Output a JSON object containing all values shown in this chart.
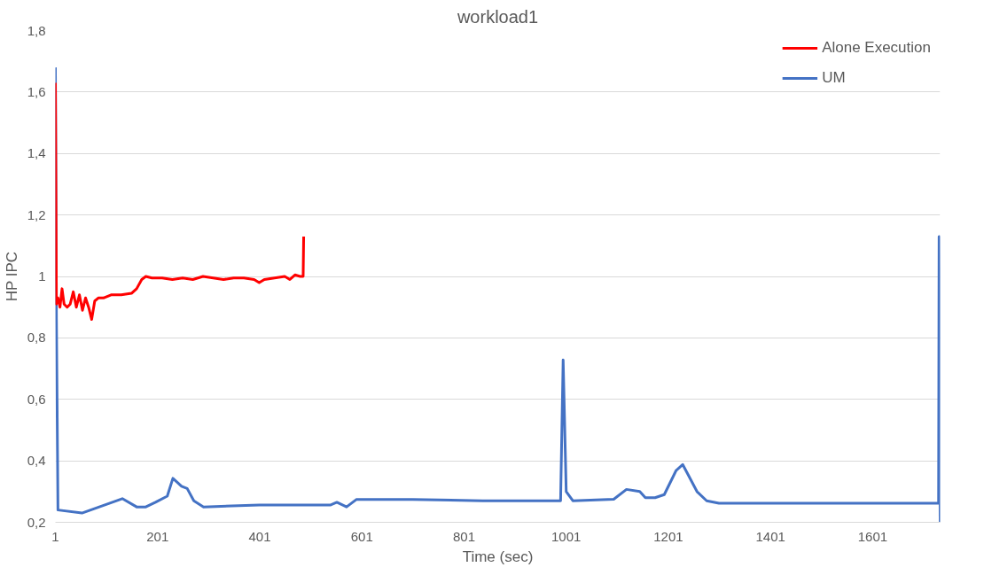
{
  "chart_data": {
    "type": "line",
    "title": "workload1",
    "xlabel": "Time (sec)",
    "ylabel": "HP IPC",
    "xlim": [
      1,
      1733
    ],
    "xticks": [
      1,
      201,
      401,
      601,
      801,
      1001,
      1201,
      1401,
      1601
    ],
    "ylim": [
      0.2,
      1.8
    ],
    "yticks": [
      {
        "value": 0.2,
        "label": "0,2"
      },
      {
        "value": 0.4,
        "label": "0,4"
      },
      {
        "value": 0.6,
        "label": "0,6"
      },
      {
        "value": 0.8,
        "label": "0,8"
      },
      {
        "value": 1,
        "label": "1"
      },
      {
        "value": 1.2,
        "label": "1,2"
      },
      {
        "value": 1.4,
        "label": "1,4"
      },
      {
        "value": 1.6,
        "label": "1,6"
      },
      {
        "value": 1.8,
        "label": "1,8"
      }
    ],
    "grid": "y",
    "legend": "top right",
    "line_style": "solid",
    "marker": "none",
    "series": [
      {
        "name": "Alone Execution",
        "color": "#ff0000",
        "x": [
          1,
          3,
          6,
          10,
          14,
          18,
          24,
          30,
          36,
          42,
          48,
          54,
          60,
          66,
          72,
          78,
          85,
          95,
          110,
          130,
          150,
          160,
          170,
          178,
          190,
          210,
          230,
          250,
          270,
          290,
          310,
          330,
          350,
          370,
          390,
          400,
          410,
          430,
          450,
          460,
          470,
          480,
          486,
          487
        ],
        "values": [
          1.63,
          0.91,
          0.93,
          0.9,
          0.96,
          0.91,
          0.9,
          0.91,
          0.95,
          0.9,
          0.94,
          0.89,
          0.93,
          0.9,
          0.86,
          0.92,
          0.93,
          0.93,
          0.94,
          0.94,
          0.945,
          0.96,
          0.99,
          1.0,
          0.995,
          0.995,
          0.99,
          0.995,
          0.99,
          1.0,
          0.995,
          0.99,
          0.995,
          0.995,
          0.99,
          0.98,
          0.99,
          0.995,
          1.0,
          0.99,
          1.005,
          1.0,
          1.0,
          1.13
        ]
      },
      {
        "name": "UM",
        "color": "#4472c4",
        "x": [
          1,
          3,
          6,
          53,
          132,
          160,
          178,
          197,
          220,
          231,
          248,
          259,
          272,
          291,
          400,
          539,
          552,
          571,
          590,
          700,
          838,
          900,
          990,
          995,
          1001,
          1014,
          1094,
          1119,
          1145,
          1156,
          1175,
          1193,
          1216,
          1229,
          1238,
          1257,
          1276,
          1300,
          1500,
          1730,
          1731,
          1733
        ],
        "values": [
          1.68,
          0.86,
          0.24,
          0.23,
          0.277,
          0.25,
          0.25,
          0.265,
          0.285,
          0.343,
          0.317,
          0.31,
          0.27,
          0.25,
          0.256,
          0.256,
          0.265,
          0.25,
          0.274,
          0.274,
          0.27,
          0.27,
          0.27,
          0.728,
          0.3,
          0.27,
          0.275,
          0.307,
          0.3,
          0.28,
          0.28,
          0.29,
          0.368,
          0.388,
          0.36,
          0.3,
          0.27,
          0.262,
          0.262,
          0.262,
          1.13,
          0.2
        ]
      }
    ]
  }
}
